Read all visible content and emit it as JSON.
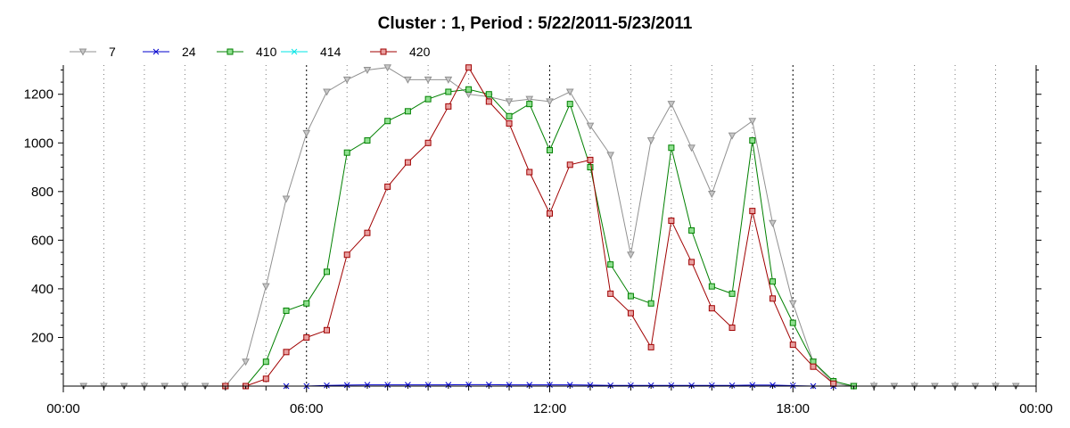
{
  "chart_data": {
    "type": "line",
    "title": "Cluster : 1, Period : 5/22/2011-5/23/2011",
    "xlabel": "",
    "ylabel": "",
    "xlim": [
      "00:00",
      "24:00"
    ],
    "ylim": [
      0,
      1320
    ],
    "x_tick_labels": [
      "00:00",
      "06:00",
      "12:00",
      "18:00",
      "00:00"
    ],
    "y_ticks": [
      200,
      400,
      600,
      800,
      1000,
      1200
    ],
    "grid": "vertical dotted",
    "legend_position": "top-left",
    "x_hours": [
      0.5,
      1,
      1.5,
      2,
      2.5,
      3,
      3.5,
      4,
      4.5,
      5,
      5.5,
      6,
      6.5,
      7,
      7.5,
      8,
      8.5,
      9,
      9.5,
      10,
      10.5,
      11,
      11.5,
      12,
      12.5,
      13,
      13.5,
      14,
      14.5,
      15,
      15.5,
      16,
      16.5,
      17,
      17.5,
      18,
      18.5,
      19,
      19.5,
      20,
      20.5,
      21,
      21.5,
      22,
      22.5,
      23,
      23.5
    ],
    "series": [
      {
        "name": "7",
        "color": "#909090",
        "marker": "triangle-down",
        "values": [
          0,
          0,
          0,
          0,
          0,
          0,
          0,
          0,
          100,
          410,
          770,
          1040,
          1210,
          1260,
          1300,
          1310,
          1260,
          1260,
          1260,
          1200,
          1190,
          1170,
          1180,
          1170,
          1210,
          1070,
          950,
          540,
          1010,
          1160,
          980,
          790,
          1030,
          1090,
          670,
          340,
          100,
          10,
          0,
          0,
          0,
          0,
          0,
          0,
          0,
          0,
          0
        ]
      },
      {
        "name": "24",
        "color": "#0000cc",
        "marker": "x",
        "values": [
          null,
          null,
          null,
          null,
          null,
          null,
          null,
          null,
          null,
          null,
          0,
          0,
          3,
          4,
          5,
          5,
          5,
          5,
          5,
          6,
          6,
          5,
          5,
          5,
          5,
          4,
          3,
          3,
          3,
          3,
          3,
          3,
          3,
          4,
          4,
          2,
          0,
          0,
          null,
          null,
          null,
          null,
          null,
          null,
          null,
          null,
          null
        ]
      },
      {
        "name": "410",
        "color": "#008000",
        "marker": "square",
        "values": [
          null,
          null,
          null,
          null,
          null,
          null,
          null,
          0,
          0,
          100,
          310,
          340,
          470,
          960,
          1010,
          1090,
          1130,
          1180,
          1210,
          1220,
          1200,
          1110,
          1160,
          970,
          1160,
          900,
          500,
          370,
          340,
          980,
          640,
          410,
          380,
          1010,
          430,
          260,
          100,
          20,
          0,
          null,
          null,
          null,
          null,
          null,
          null,
          null,
          null
        ]
      },
      {
        "name": "414",
        "color": "#00e5e5",
        "marker": "x",
        "values": [
          null,
          null,
          null,
          null,
          null,
          null,
          null,
          null,
          null,
          null,
          null,
          null,
          null,
          null,
          null,
          null,
          null,
          null,
          null,
          null,
          null,
          null,
          null,
          null,
          null,
          null,
          null,
          null,
          null,
          null,
          null,
          null,
          null,
          null,
          null,
          null,
          null,
          null,
          null,
          null,
          null,
          null,
          null,
          null,
          null,
          null,
          null
        ]
      },
      {
        "name": "420",
        "color": "#a00000",
        "marker": "square",
        "values": [
          null,
          null,
          null,
          null,
          null,
          null,
          null,
          0,
          0,
          30,
          140,
          200,
          230,
          540,
          630,
          820,
          920,
          1000,
          1150,
          1310,
          1170,
          1080,
          880,
          710,
          910,
          930,
          380,
          300,
          160,
          680,
          510,
          320,
          240,
          720,
          360,
          170,
          80,
          10,
          null,
          null,
          null,
          null,
          null,
          null,
          null,
          null,
          null
        ]
      }
    ]
  }
}
